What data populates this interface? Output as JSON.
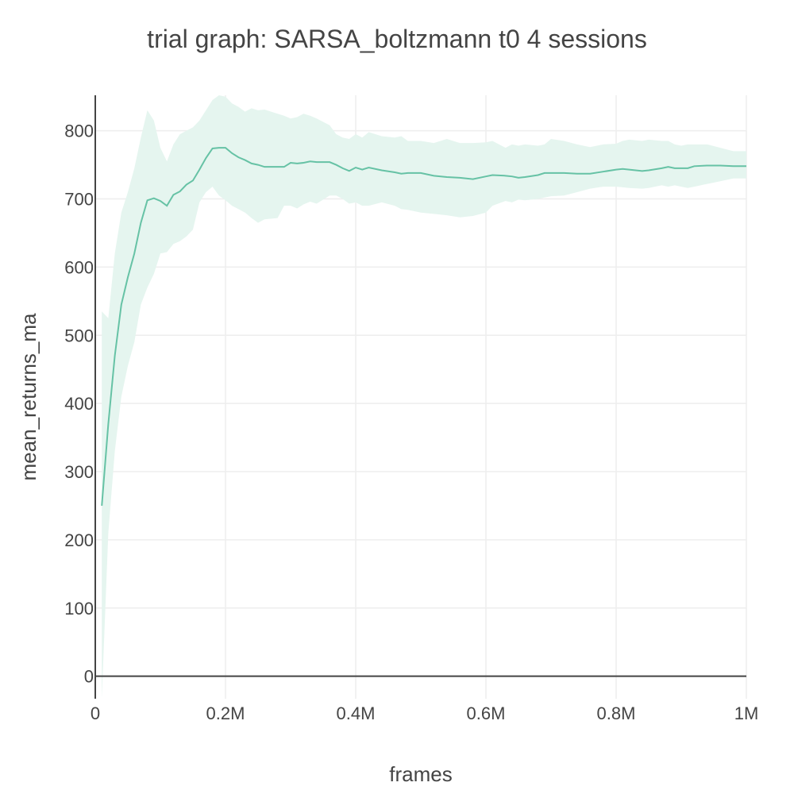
{
  "chart_data": {
    "type": "line",
    "title": "trial graph: SARSA_boltzmann t0 4 sessions",
    "xlabel": "frames",
    "ylabel": "mean_returns_ma",
    "xlim": [
      0,
      1000000
    ],
    "ylim": [
      -33,
      852
    ],
    "grid": true,
    "x_ticks": [
      {
        "value": 0,
        "label": "0"
      },
      {
        "value": 200000,
        "label": "0.2M"
      },
      {
        "value": 400000,
        "label": "0.4M"
      },
      {
        "value": 600000,
        "label": "0.6M"
      },
      {
        "value": 800000,
        "label": "0.8M"
      },
      {
        "value": 1000000,
        "label": "1M"
      }
    ],
    "y_ticks": [
      {
        "value": 0,
        "label": "0"
      },
      {
        "value": 100,
        "label": "100"
      },
      {
        "value": 200,
        "label": "200"
      },
      {
        "value": 300,
        "label": "300"
      },
      {
        "value": 400,
        "label": "400"
      },
      {
        "value": 500,
        "label": "500"
      },
      {
        "value": 600,
        "label": "600"
      },
      {
        "value": 700,
        "label": "700"
      },
      {
        "value": 800,
        "label": "800"
      }
    ],
    "colors": {
      "line": "#66c2a5",
      "band": "#e5f5ef",
      "text": "#444444",
      "grid": "#eeeeee"
    },
    "series": [
      {
        "x": [
          10000,
          20000,
          30000,
          40000,
          50000,
          60000,
          70000,
          80000,
          90000,
          100000,
          110000,
          120000,
          130000,
          140000,
          150000,
          160000,
          170000,
          180000,
          190000,
          200000,
          210000,
          220000,
          230000,
          240000,
          250000,
          260000,
          280000,
          290000,
          300000,
          310000,
          320000,
          330000,
          340000,
          360000,
          370000,
          380000,
          390000,
          400000,
          410000,
          420000,
          440000,
          460000,
          470000,
          480000,
          500000,
          520000,
          540000,
          560000,
          580000,
          600000,
          610000,
          630000,
          640000,
          650000,
          660000,
          680000,
          690000,
          700000,
          720000,
          740000,
          760000,
          780000,
          800000,
          810000,
          820000,
          840000,
          850000,
          870000,
          880000,
          890000,
          900000,
          910000,
          920000,
          940000,
          960000,
          980000,
          1000000
        ],
        "y": [
          250,
          370,
          470,
          545,
          585,
          620,
          665,
          698,
          701,
          697,
          690,
          706,
          711,
          721,
          727,
          743,
          760,
          774,
          775,
          775,
          767,
          761,
          757,
          752,
          750,
          747,
          747,
          747,
          753,
          752,
          753,
          755,
          754,
          754,
          750,
          745,
          741,
          746,
          743,
          746,
          742,
          739,
          737,
          738,
          738,
          734,
          732,
          731,
          729,
          733,
          735,
          734,
          733,
          731,
          732,
          735,
          738,
          738,
          738,
          737,
          737,
          740,
          743,
          744,
          743,
          741,
          742,
          745,
          747,
          745,
          745,
          745,
          748,
          749,
          749,
          748,
          748
        ],
        "upper": [
          535,
          525,
          620,
          680,
          710,
          745,
          790,
          830,
          815,
          775,
          755,
          780,
          795,
          800,
          805,
          815,
          830,
          845,
          852,
          850,
          840,
          835,
          828,
          833,
          830,
          831,
          825,
          822,
          818,
          820,
          825,
          822,
          818,
          808,
          795,
          790,
          788,
          795,
          790,
          798,
          792,
          790,
          792,
          785,
          785,
          782,
          788,
          782,
          782,
          783,
          785,
          775,
          780,
          778,
          780,
          778,
          780,
          788,
          785,
          780,
          776,
          780,
          781,
          785,
          787,
          785,
          787,
          785,
          785,
          780,
          778,
          780,
          780,
          780,
          775,
          770,
          770
        ],
        "lower": [
          -35,
          210,
          330,
          410,
          455,
          490,
          545,
          570,
          590,
          620,
          622,
          634,
          638,
          645,
          655,
          695,
          710,
          718,
          705,
          698,
          690,
          685,
          680,
          672,
          665,
          670,
          672,
          690,
          690,
          686,
          692,
          696,
          693,
          705,
          705,
          700,
          693,
          695,
          690,
          690,
          695,
          690,
          685,
          684,
          680,
          678,
          676,
          673,
          675,
          680,
          690,
          697,
          695,
          699,
          698,
          700,
          702,
          704,
          705,
          710,
          715,
          718,
          718,
          717,
          716,
          715,
          716,
          720,
          718,
          720,
          718,
          716,
          718,
          722,
          726,
          730,
          730
        ]
      }
    ]
  }
}
